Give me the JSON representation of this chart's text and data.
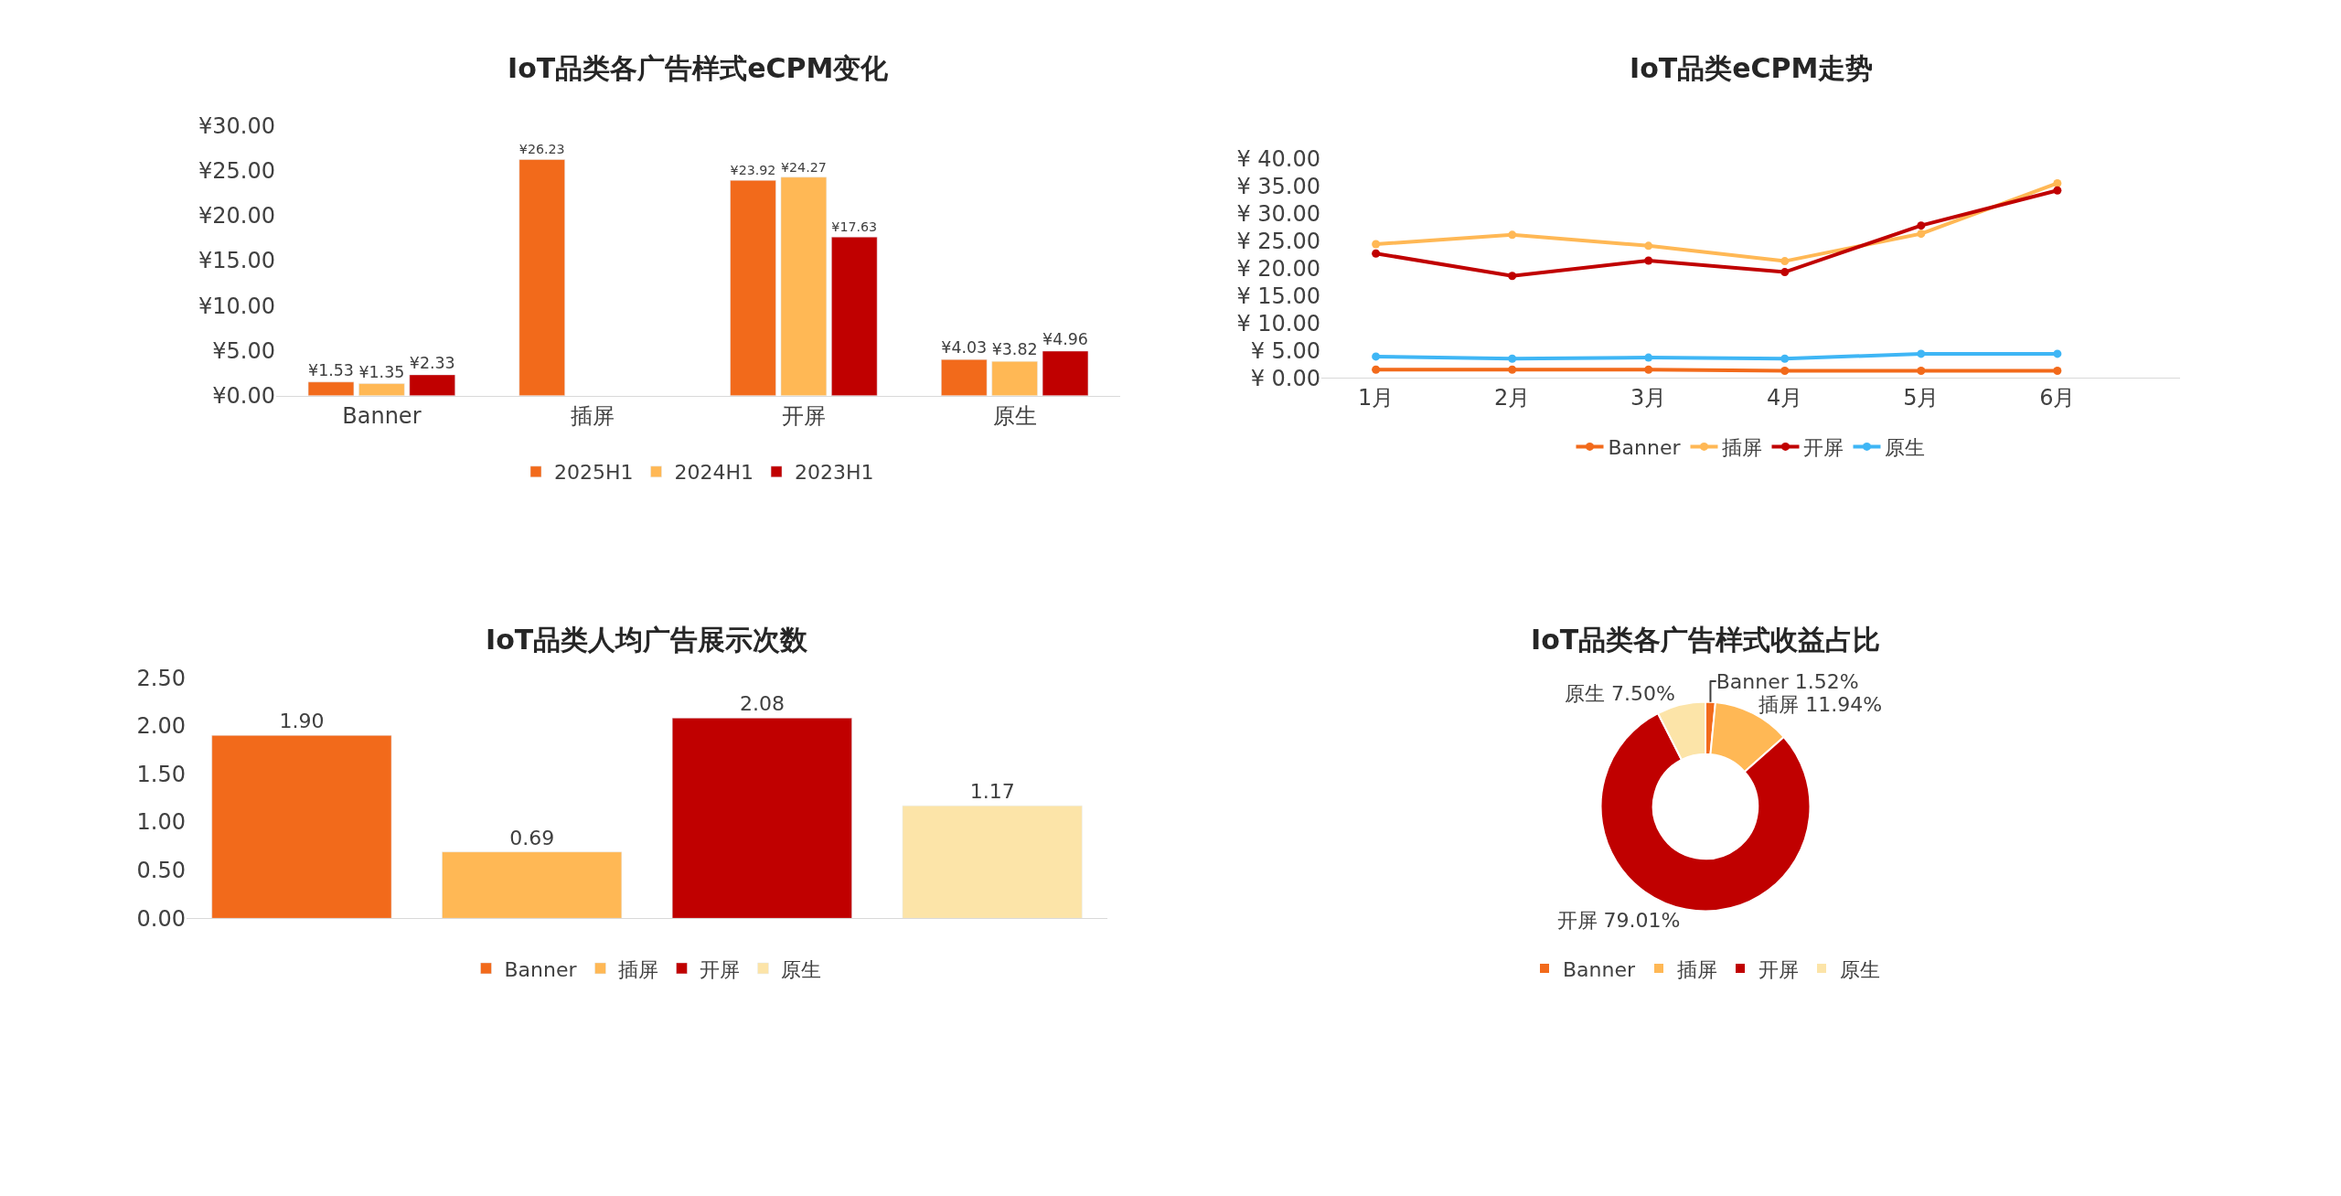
{
  "chart_data": [
    {
      "type": "bar",
      "title": "IoT品类各广告样式eCPM变化",
      "categories": [
        "Banner",
        "插屏",
        "开屏",
        "原生"
      ],
      "series": [
        {
          "name": "2025H1",
          "color": "#f26a1b",
          "values": [
            1.53,
            26.23,
            23.92,
            4.03
          ],
          "value_labels": [
            "¥1.53",
            "¥26.23",
            "¥23.92",
            "¥4.03"
          ]
        },
        {
          "name": "2024H1",
          "color": "#ffb855",
          "values": [
            1.35,
            null,
            24.27,
            3.82
          ],
          "value_labels": [
            "¥1.35",
            null,
            "¥24.27",
            "¥3.82"
          ]
        },
        {
          "name": "2023H1",
          "color": "#c00000",
          "values": [
            2.33,
            null,
            17.63,
            4.96
          ],
          "value_labels": [
            "¥2.33",
            null,
            "¥17.63",
            "¥4.96"
          ]
        }
      ],
      "ylim": [
        0,
        30
      ],
      "yticks": [
        {
          "value": 0,
          "label": "¥0.00"
        },
        {
          "value": 5,
          "label": "¥5.00"
        },
        {
          "value": 10,
          "label": "¥10.00"
        },
        {
          "value": 15,
          "label": "¥15.00"
        },
        {
          "value": 20,
          "label": "¥20.00"
        },
        {
          "value": 25,
          "label": "¥25.00"
        },
        {
          "value": 30,
          "label": "¥30.00"
        }
      ],
      "legend": "bottom"
    },
    {
      "type": "line",
      "title": "IoT品类eCPM走势",
      "categories": [
        "1月",
        "2月",
        "3月",
        "4月",
        "5月",
        "6月"
      ],
      "series": [
        {
          "name": "Banner",
          "color": "#f26a1b",
          "values": [
            1.5,
            1.5,
            1.5,
            1.3,
            1.3,
            1.3
          ]
        },
        {
          "name": "插屏",
          "color": "#ffb855",
          "values": [
            24.4,
            26.1,
            24.1,
            21.3,
            26.3,
            35.5
          ]
        },
        {
          "name": "开屏",
          "color": "#c00000",
          "values": [
            22.7,
            18.6,
            21.4,
            19.3,
            27.8,
            34.2
          ]
        },
        {
          "name": "原生",
          "color": "#3fb6f5",
          "values": [
            3.9,
            3.5,
            3.7,
            3.5,
            4.4,
            4.4
          ]
        }
      ],
      "ylim": [
        0,
        40
      ],
      "yticks": [
        {
          "value": 0,
          "label": "¥ 0.00"
        },
        {
          "value": 5,
          "label": "¥ 5.00"
        },
        {
          "value": 10,
          "label": "¥ 10.00"
        },
        {
          "value": 15,
          "label": "¥ 15.00"
        },
        {
          "value": 20,
          "label": "¥ 20.00"
        },
        {
          "value": 25,
          "label": "¥ 25.00"
        },
        {
          "value": 30,
          "label": "¥ 30.00"
        },
        {
          "value": 35,
          "label": "¥ 35.00"
        },
        {
          "value": 40,
          "label": "¥ 40.00"
        }
      ],
      "marker": "circle",
      "line_style": "solid",
      "legend": "bottom"
    },
    {
      "type": "bar",
      "title": "IoT品类人均广告展示次数",
      "categories": [
        null,
        null,
        null,
        null
      ],
      "stacked": true,
      "series": [
        {
          "name": "Banner",
          "color": "#f26a1b",
          "values": [
            1.9,
            null,
            null,
            null
          ],
          "value_labels": [
            "1.90",
            null,
            null,
            null
          ]
        },
        {
          "name": "插屏",
          "color": "#ffb855",
          "values": [
            null,
            0.69,
            null,
            null
          ],
          "value_labels": [
            null,
            "0.69",
            null,
            null
          ]
        },
        {
          "name": "开屏",
          "color": "#c00000",
          "values": [
            null,
            null,
            2.08,
            null
          ],
          "value_labels": [
            null,
            null,
            "2.08",
            null
          ]
        },
        {
          "name": "原生",
          "color": "#fce4a8",
          "values": [
            null,
            null,
            null,
            1.17
          ],
          "value_labels": [
            null,
            null,
            null,
            "1.17"
          ]
        }
      ],
      "ylim": [
        0,
        2.5
      ],
      "yticks": [
        {
          "value": 0,
          "label": "0.00"
        },
        {
          "value": 0.5,
          "label": "0.50"
        },
        {
          "value": 1,
          "label": "1.00"
        },
        {
          "value": 1.5,
          "label": "1.50"
        },
        {
          "value": 2,
          "label": "2.00"
        },
        {
          "value": 2.5,
          "label": "2.50"
        }
      ],
      "tick_labels": "y",
      "legend": "bottom"
    },
    {
      "type": "donut",
      "title": "IoT品类各广告样式收益占比",
      "categories": [
        "Banner",
        "插屏",
        "开屏",
        "原生"
      ],
      "values": [
        1.52,
        11.94,
        79.01,
        7.5
      ],
      "value_labels": [
        "1.52%",
        "11.94%",
        "79.01%",
        "7.50%"
      ],
      "colors": [
        "#f26a1b",
        "#ffb855",
        "#c00000",
        "#fce4a8"
      ],
      "legend": "bottom"
    }
  ]
}
